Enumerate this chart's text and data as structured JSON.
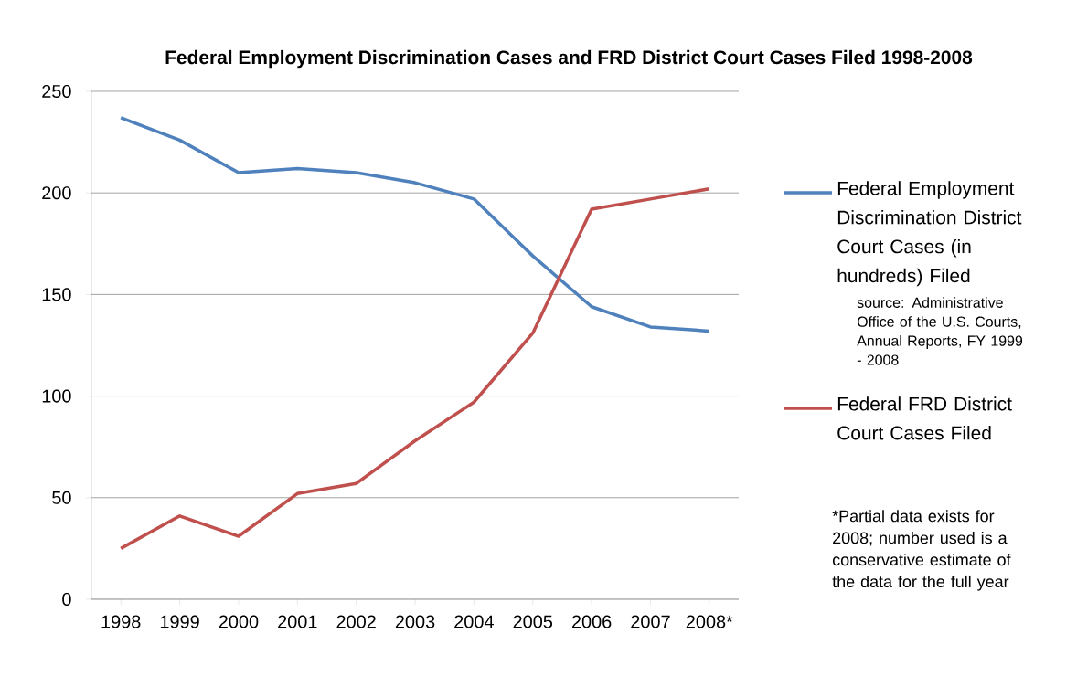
{
  "chart_data": {
    "type": "line",
    "title": "Federal Employment Discrimination Cases and FRD District Court Cases Filed 1998-2008",
    "categories": [
      "1998",
      "1999",
      "2000",
      "2001",
      "2002",
      "2003",
      "2004",
      "2005",
      "2006",
      "2007",
      "2008*"
    ],
    "series": [
      {
        "name": "Federal Employment Discrimination District Court Cases (in hundreds) Filed",
        "color": "#4f81bd",
        "values": [
          237,
          226,
          210,
          212,
          210,
          205,
          197,
          169,
          144,
          134,
          132
        ]
      },
      {
        "name": "Federal FRD District Court Cases Filed",
        "color": "#c0504d",
        "values": [
          25,
          41,
          31,
          52,
          57,
          78,
          97,
          131,
          192,
          197,
          202
        ]
      }
    ],
    "ylim": [
      0,
      250
    ],
    "yticks": [
      0,
      50,
      100,
      150,
      200,
      250
    ],
    "grid": "y",
    "legend": "right",
    "marker": "none",
    "line_style": "solid",
    "annotations": [
      "source: Administrative Office of the U.S. Courts, Annual Reports, FY 1999 - 2008",
      "*Partial  data exists for 2008; number used is a conservative estimate of the data for the full year"
    ]
  }
}
